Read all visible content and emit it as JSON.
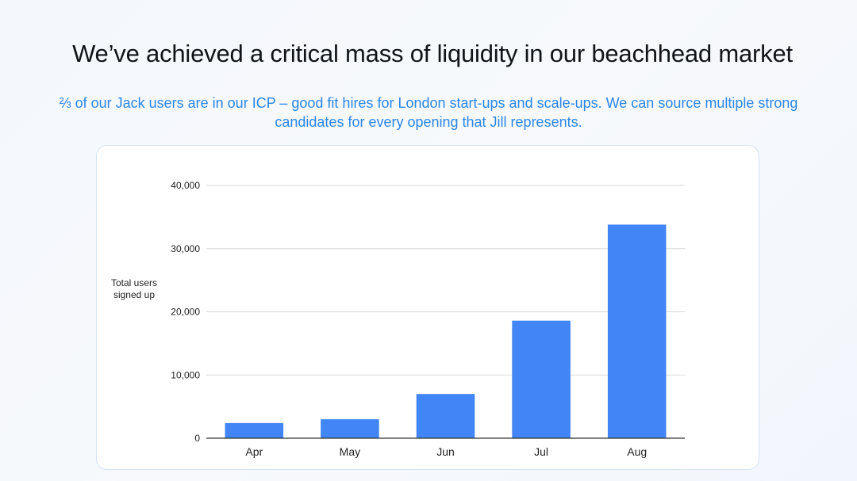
{
  "slide": {
    "title": "We’ve achieved a critical mass of liquidity in our beachhead market",
    "subtitle": "⅔ of our Jack users are in our ICP – good fit hires for London start-ups and scale-ups. We can source multiple strong candidates for every opening that Jill represents."
  },
  "colors": {
    "bar": "#4285f4",
    "subtitle": "#2a86e6",
    "grid": "#d9d9d9",
    "axis": "#333333"
  },
  "chart_data": {
    "type": "bar",
    "title": "",
    "xlabel": "",
    "ylabel_lines": [
      "Total users",
      "signed up"
    ],
    "categories": [
      "Apr",
      "May",
      "Jun",
      "Jul",
      "Aug"
    ],
    "values": [
      2400,
      3000,
      7000,
      18600,
      33800
    ],
    "ylim": [
      0,
      40000
    ],
    "yticks": [
      0,
      10000,
      20000,
      30000,
      40000
    ],
    "ytick_labels": [
      "0",
      "10,000",
      "20,000",
      "30,000",
      "40,000"
    ],
    "grid": true,
    "legend": "none"
  }
}
